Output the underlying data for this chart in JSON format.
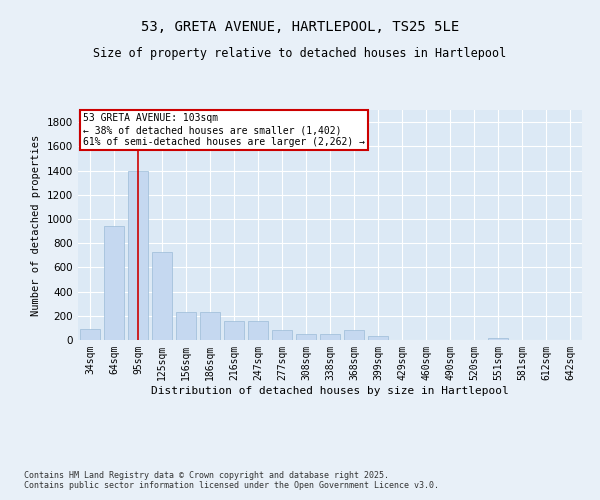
{
  "title_line1": "53, GRETA AVENUE, HARTLEPOOL, TS25 5LE",
  "title_line2": "Size of property relative to detached houses in Hartlepool",
  "xlabel": "Distribution of detached houses by size in Hartlepool",
  "ylabel": "Number of detached properties",
  "categories": [
    "34sqm",
    "64sqm",
    "95sqm",
    "125sqm",
    "156sqm",
    "186sqm",
    "216sqm",
    "247sqm",
    "277sqm",
    "308sqm",
    "338sqm",
    "368sqm",
    "399sqm",
    "429sqm",
    "460sqm",
    "490sqm",
    "520sqm",
    "551sqm",
    "581sqm",
    "612sqm",
    "642sqm"
  ],
  "values": [
    90,
    940,
    1400,
    730,
    235,
    235,
    155,
    155,
    80,
    50,
    50,
    80,
    30,
    0,
    0,
    0,
    0,
    15,
    0,
    0,
    0
  ],
  "bar_color": "#c5d8f0",
  "bar_edge_color": "#9bbcd8",
  "plot_bg_color": "#dce9f5",
  "fig_bg_color": "#e8f0f8",
  "grid_color": "#ffffff",
  "annotation_text": "53 GRETA AVENUE: 103sqm\n← 38% of detached houses are smaller (1,402)\n61% of semi-detached houses are larger (2,262) →",
  "annotation_box_color": "#ffffff",
  "annotation_box_edge_color": "#cc0000",
  "vline_x_idx": 2,
  "vline_color": "#cc0000",
  "footer_text": "Contains HM Land Registry data © Crown copyright and database right 2025.\nContains public sector information licensed under the Open Government Licence v3.0.",
  "ylim": [
    0,
    1900
  ],
  "yticks": [
    0,
    200,
    400,
    600,
    800,
    1000,
    1200,
    1400,
    1600,
    1800
  ]
}
